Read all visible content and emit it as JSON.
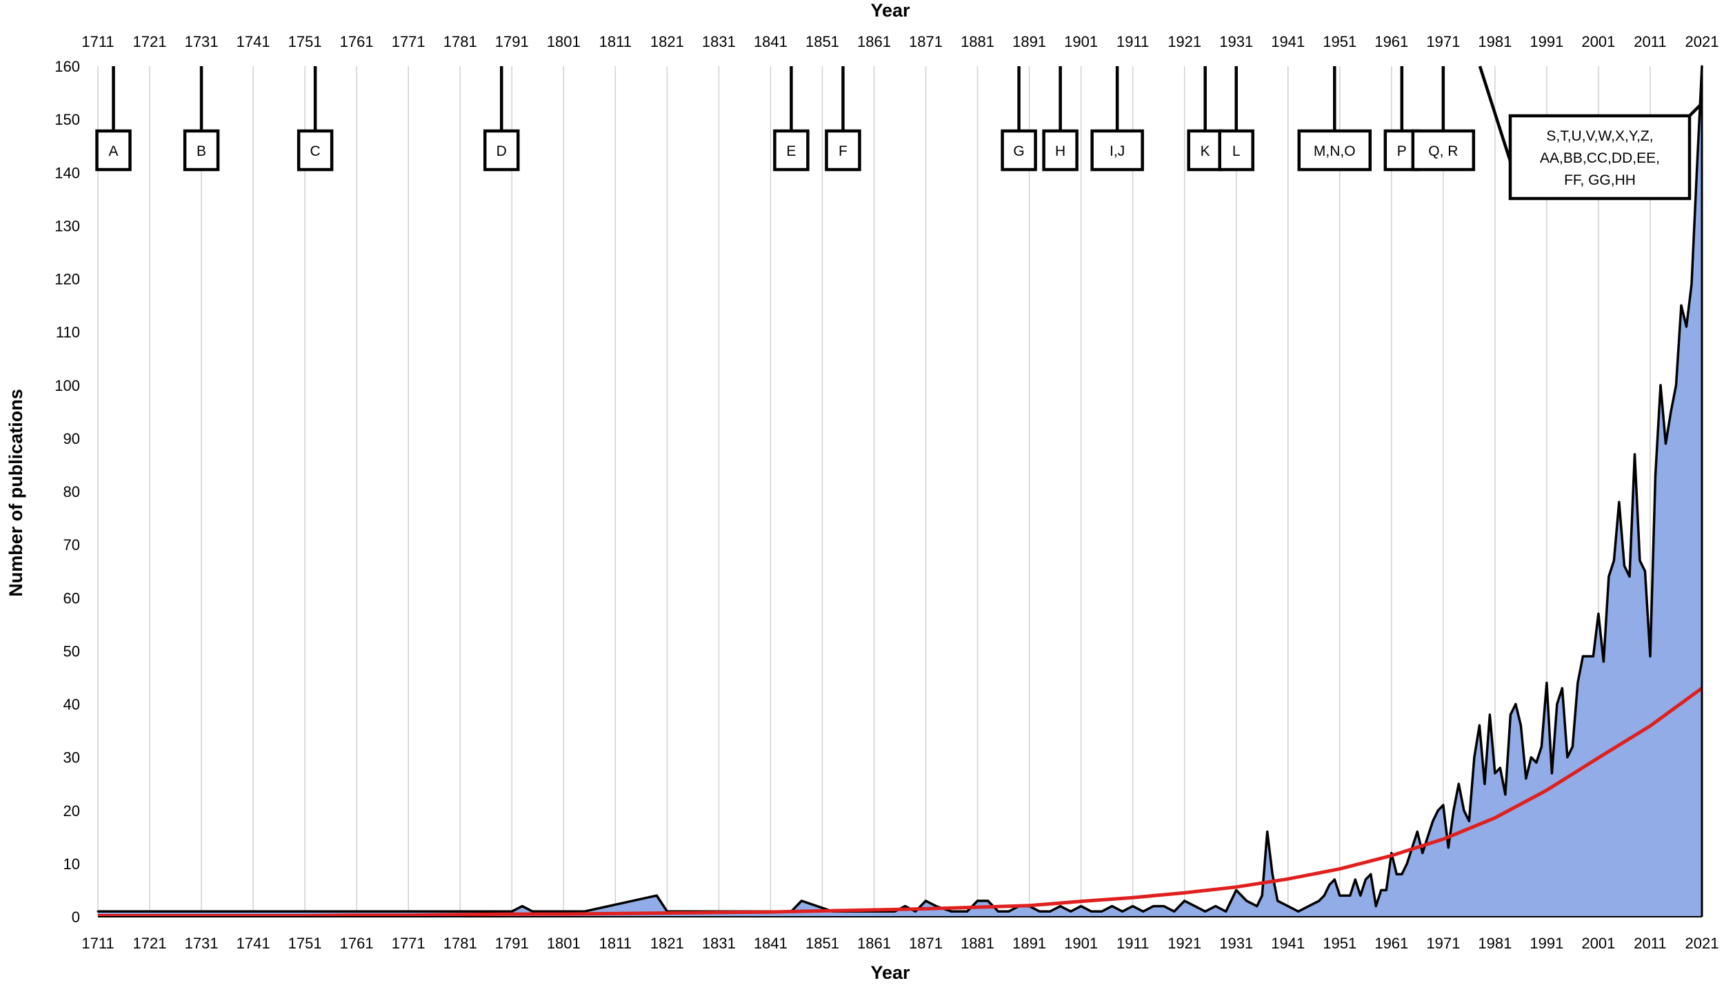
{
  "chart_data": {
    "type": "area",
    "title": "",
    "xlabel": "Year",
    "x2label": "Year",
    "ylabel": "Number of publications",
    "xlim": [
      1711,
      2021
    ],
    "ylim": [
      0,
      160
    ],
    "yticks": [
      0,
      10,
      20,
      30,
      40,
      50,
      60,
      70,
      80,
      90,
      100,
      110,
      120,
      130,
      140,
      150,
      160
    ],
    "xtick_labels": [
      "1711",
      "1721",
      "1731",
      "1741",
      "1751",
      "1761",
      "1771",
      "1781",
      "1791",
      "1801",
      "1811",
      "1821",
      "1831",
      "1841",
      "1851",
      "1861",
      "1871",
      "1881",
      "1891",
      "1901",
      "1911",
      "1921",
      "1931",
      "1941",
      "1951",
      "1961",
      "1971",
      "1981",
      "1991",
      "2001",
      "2011",
      "2021"
    ],
    "grid": "vertical",
    "legend": "none",
    "colors": {
      "area_fill": "#91ace6",
      "area_line": "#000000",
      "trend": "#e01f1f",
      "grid": "#d0d0d0"
    },
    "series": [
      {
        "values_kind": "publications per year",
        "x": [
          1711,
          1791,
          1793,
          1795,
          1799,
          1805,
          1819,
          1821,
          1845,
          1847,
          1853,
          1865,
          1867,
          1869,
          1871,
          1873,
          1876,
          1879,
          1881,
          1883,
          1885,
          1887,
          1889,
          1891,
          1893,
          1895,
          1897,
          1899,
          1901,
          1903,
          1905,
          1907,
          1909,
          1911,
          1913,
          1915,
          1917,
          1919,
          1921,
          1923,
          1925,
          1927,
          1929,
          1931,
          1933,
          1935,
          1936,
          1937,
          1938,
          1939,
          1941,
          1943,
          1945,
          1947,
          1948,
          1949,
          1950,
          1951,
          1952,
          1953,
          1954,
          1955,
          1956,
          1957,
          1958,
          1959,
          1960,
          1961,
          1962,
          1963,
          1964,
          1965,
          1966,
          1967,
          1968,
          1969,
          1970,
          1971,
          1972,
          1973,
          1974,
          1975,
          1976,
          1977,
          1978,
          1979,
          1980,
          1981,
          1982,
          1983,
          1984,
          1985,
          1986,
          1987,
          1988,
          1989,
          1990,
          1991,
          1992,
          1993,
          1994,
          1995,
          1996,
          1997,
          1998,
          1999,
          2000,
          2001,
          2002,
          2003,
          2004,
          2005,
          2006,
          2007,
          2008,
          2009,
          2010,
          2011,
          2012,
          2013,
          2014,
          2015,
          2016,
          2017,
          2018,
          2019,
          2020,
          2021
        ],
        "values": [
          1,
          1,
          2,
          1,
          1,
          1,
          4,
          1,
          1,
          3,
          1,
          1,
          2,
          1,
          3,
          2,
          1,
          1,
          3,
          3,
          1,
          1,
          2,
          2,
          1,
          1,
          2,
          1,
          2,
          1,
          1,
          2,
          1,
          2,
          1,
          2,
          2,
          1,
          3,
          2,
          1,
          2,
          1,
          5,
          3,
          2,
          4,
          16,
          8,
          3,
          2,
          1,
          2,
          3,
          4,
          6,
          7,
          4,
          4,
          4,
          7,
          4,
          7,
          8,
          2,
          5,
          5,
          12,
          8,
          8,
          10,
          13,
          16,
          12,
          15,
          18,
          20,
          21,
          13,
          20,
          25,
          20,
          18,
          30,
          36,
          25,
          38,
          27,
          28,
          23,
          38,
          40,
          36,
          26,
          30,
          29,
          32,
          44,
          27,
          40,
          43,
          30,
          32,
          44,
          49,
          49,
          49,
          57,
          48,
          64,
          67,
          78,
          66,
          64,
          87,
          67,
          65,
          49,
          83,
          100,
          89,
          95,
          100,
          115,
          111,
          119,
          140,
          160
        ],
        "name": ""
      },
      {
        "values_kind": "trend",
        "name": "",
        "x": [
          1711,
          1721,
          1731,
          1741,
          1751,
          1761,
          1771,
          1781,
          1791,
          1801,
          1811,
          1821,
          1831,
          1841,
          1851,
          1861,
          1871,
          1881,
          1891,
          1901,
          1911,
          1921,
          1931,
          1941,
          1951,
          1961,
          1971,
          1981,
          1991,
          2001,
          2011,
          2021
        ],
        "values": [
          0.2,
          0.2,
          0.2,
          0.2,
          0.2,
          0.3,
          0.3,
          0.4,
          0.5,
          0.5,
          0.6,
          0.7,
          0.8,
          0.9,
          1.1,
          1.3,
          1.5,
          1.8,
          2.1,
          2.9,
          3.6,
          4.5,
          5.6,
          7.1,
          9.0,
          11.5,
          14.6,
          18.6,
          23.8,
          29.9,
          35.9,
          43.0
        ]
      }
    ],
    "annotations": [
      {
        "label": "A",
        "x": 1714
      },
      {
        "label": "B",
        "x": 1731
      },
      {
        "label": "C",
        "x": 1753
      },
      {
        "label": "D",
        "x": 1789
      },
      {
        "label": "E",
        "x": 1845
      },
      {
        "label": "F",
        "x": 1855
      },
      {
        "label": "G",
        "x": 1889
      },
      {
        "label": "H",
        "x": 1897
      },
      {
        "label": "I,J",
        "x": 1908
      },
      {
        "label": "K",
        "x": 1925
      },
      {
        "label": "L",
        "x": 1931
      },
      {
        "label": "M,N,O",
        "x": 1950
      },
      {
        "label": "P",
        "x": 1963
      },
      {
        "label": "Q, R",
        "x": 1971
      },
      {
        "label": "S,T,U,V,W,X,Y,Z,",
        "line2": "AA,BB,CC,DD,EE,",
        "line3": "FF, GG,HH",
        "x": 2021
      }
    ]
  }
}
